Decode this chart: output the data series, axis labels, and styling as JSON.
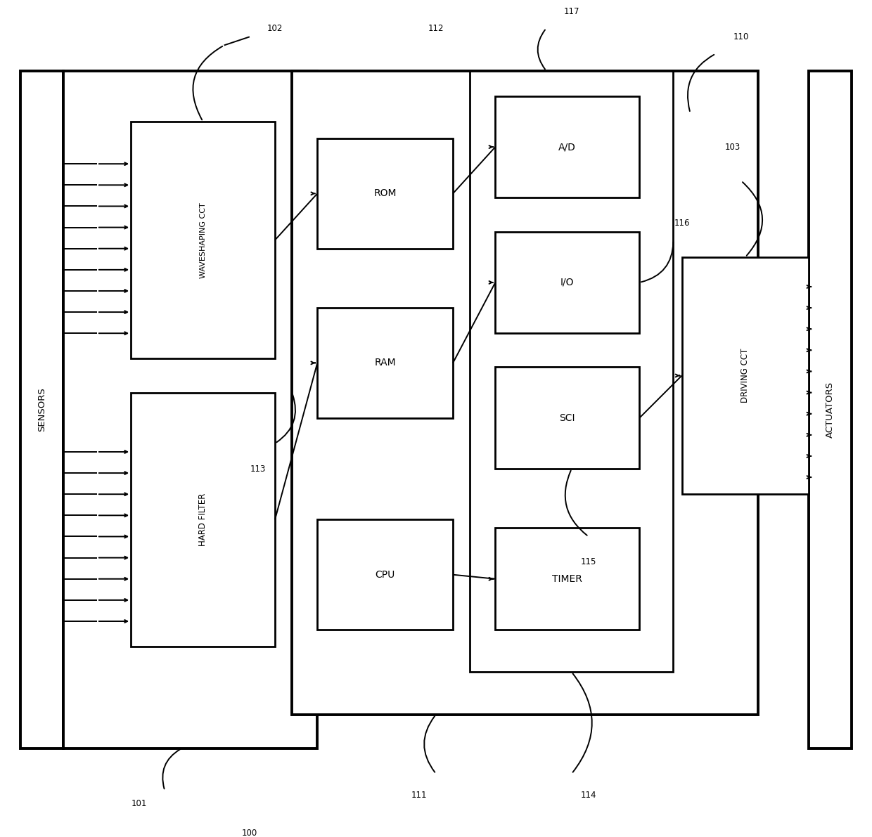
{
  "bg": "#ffffff",
  "lc": "#000000",
  "fw": 12.4,
  "fh": 11.91,
  "lw_thick": 2.8,
  "lw_med": 2.0,
  "lw_thin": 1.4,
  "labels": {
    "sensors": "SENSORS",
    "actuators": "ACTUATORS",
    "waveshaping": "WAVESHAPING CCT",
    "hard_filter": "HARD FILTER",
    "rom": "ROM",
    "ram": "RAM",
    "cpu": "CPU",
    "ad": "A/D",
    "io": "I/O",
    "sci": "SCI",
    "timer": "TIMER",
    "driving": "DRIVING CCT"
  }
}
